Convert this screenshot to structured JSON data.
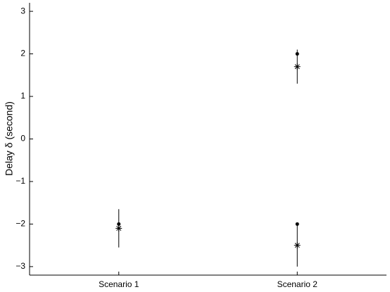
{
  "chart_data": {
    "type": "errorbar",
    "y_label": "Delay δ (second)",
    "categories": [
      "Scenario 1",
      "Scenario 2"
    ],
    "ylim": [
      -3.2,
      3.2
    ],
    "yticks": [
      {
        "value": -3,
        "label": "−3"
      },
      {
        "value": -2,
        "label": "−2"
      },
      {
        "value": -1,
        "label": "−1"
      },
      0,
      1,
      2,
      3
    ],
    "grid": false,
    "series": [
      {
        "marker": "dot",
        "color": "#000000",
        "values": [
          -2,
          2
        ]
      },
      {
        "marker": "dot",
        "color": "#000000",
        "values": [
          null,
          -2
        ]
      },
      {
        "marker": "star",
        "color": "#000000",
        "values": [
          -2.1,
          1.7
        ],
        "errors": [
          0.45,
          0.4
        ]
      },
      {
        "marker": "star",
        "color": "#000000",
        "values": [
          null,
          -2.5
        ],
        "errors": [
          null,
          0.5
        ]
      }
    ]
  }
}
